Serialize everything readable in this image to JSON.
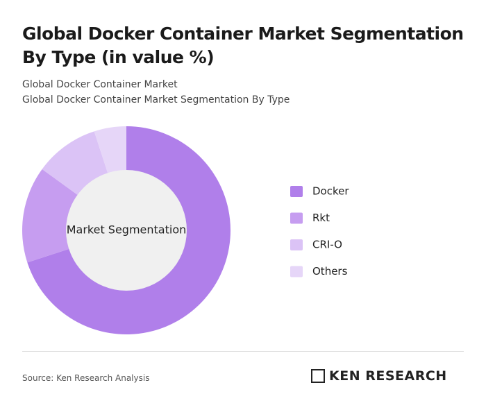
{
  "chart_data": {
    "type": "donut",
    "title": "Global Docker Container Market Segmentation By Type (in value %)",
    "subtitle": "Global Docker Container Market",
    "subtitle2": "Global Docker Container Market Segmentation By Type",
    "center_label": "Market Segmentation",
    "categories": [
      "Docker",
      "Rkt",
      "CRI-O",
      "Others"
    ],
    "values": [
      70,
      15,
      10,
      5
    ],
    "colors": [
      "#b07fea",
      "#c69df0",
      "#dbc3f6",
      "#e6d6f8"
    ]
  },
  "source": "Source: Ken Research Analysis",
  "logo": "KEN RESEARCH"
}
